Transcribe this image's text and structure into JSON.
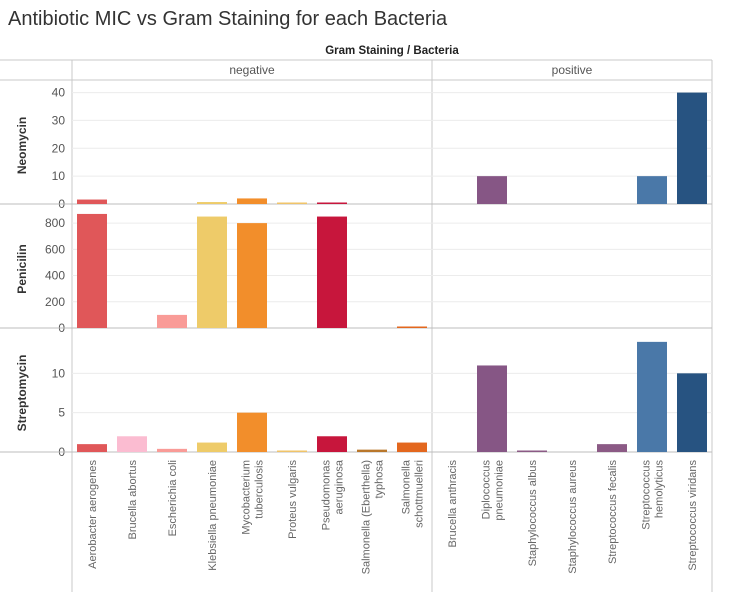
{
  "title": "Antibiotic MIC vs Gram Staining for each Bacteria",
  "header": "Gram Staining  /  Bacteria",
  "chart_data": {
    "type": "bar",
    "title": "Antibiotic MIC vs Gram Staining for each Bacteria",
    "column_header": "Gram Staining  /  Bacteria",
    "groups": [
      {
        "name": "negative",
        "bacteria": [
          {
            "label": [
              "Aerobacter aerogenes"
            ],
            "color": "#e05759"
          },
          {
            "label": [
              "Brucella abortus"
            ],
            "color": "#fbbcd1"
          },
          {
            "label": [
              "Escherichia coli"
            ],
            "color": "#f99b97"
          },
          {
            "label": [
              "Klebsiella pneumoniae"
            ],
            "color": "#eecb69"
          },
          {
            "label": [
              "Mycobacterium",
              "tuberculosis"
            ],
            "color": "#f28e2b"
          },
          {
            "label": [
              "Proteus vulgaris"
            ],
            "color": "#f0c46a"
          },
          {
            "label": [
              "Pseudomonas",
              "aeruginosa"
            ],
            "color": "#c7163c"
          },
          {
            "label": [
              "Salmonella (Eberthella)",
              "typhosa"
            ],
            "color": "#b9772b"
          },
          {
            "label": [
              "Salmonella",
              "schottmuelleri"
            ],
            "color": "#e3671e"
          }
        ]
      },
      {
        "name": "positive",
        "bacteria": [
          {
            "label": [
              "Brucella anthracis"
            ],
            "color": "#8b5a85"
          },
          {
            "label": [
              "Diplococcus",
              "pneumoniae"
            ],
            "color": "#865685"
          },
          {
            "label": [
              "Staphylococcus albus"
            ],
            "color": "#8b5a85"
          },
          {
            "label": [
              "Staphylococcus aureus"
            ],
            "color": "#8b5a85"
          },
          {
            "label": [
              "Streptococcus fecalis"
            ],
            "color": "#8b5a85"
          },
          {
            "label": [
              "Streptococcus",
              "hemolyticus"
            ],
            "color": "#4a78a8"
          },
          {
            "label": [
              "Streptococcus viridans"
            ],
            "color": "#275381"
          }
        ]
      }
    ],
    "rows": [
      {
        "name": "Neomycin",
        "ylim": [
          0,
          42
        ],
        "ticks": [
          0,
          10,
          20,
          30,
          40
        ],
        "values": {
          "negative": [
            1.6,
            0,
            0,
            0.7,
            2,
            0.1,
            0.4,
            0,
            0
          ],
          "positive": [
            0,
            10,
            0,
            0,
            0,
            10,
            40
          ]
        }
      },
      {
        "name": "Penicilin",
        "ylim": [
          0,
          900
        ],
        "ticks": [
          0,
          200,
          400,
          600,
          800
        ],
        "values": {
          "negative": [
            870,
            0,
            100,
            850,
            800,
            0,
            850,
            0,
            1
          ],
          "positive": [
            0,
            0,
            0,
            0,
            0,
            0,
            0
          ]
        }
      },
      {
        "name": "Streptomycin",
        "ylim": [
          0,
          15
        ],
        "ticks": [
          0,
          5,
          10
        ],
        "values": {
          "negative": [
            1,
            2,
            0.4,
            1.2,
            5,
            0.1,
            2,
            0.3,
            1.2
          ],
          "positive": [
            0,
            11,
            0.1,
            0,
            1,
            14,
            10
          ]
        }
      }
    ],
    "grid": true
  }
}
